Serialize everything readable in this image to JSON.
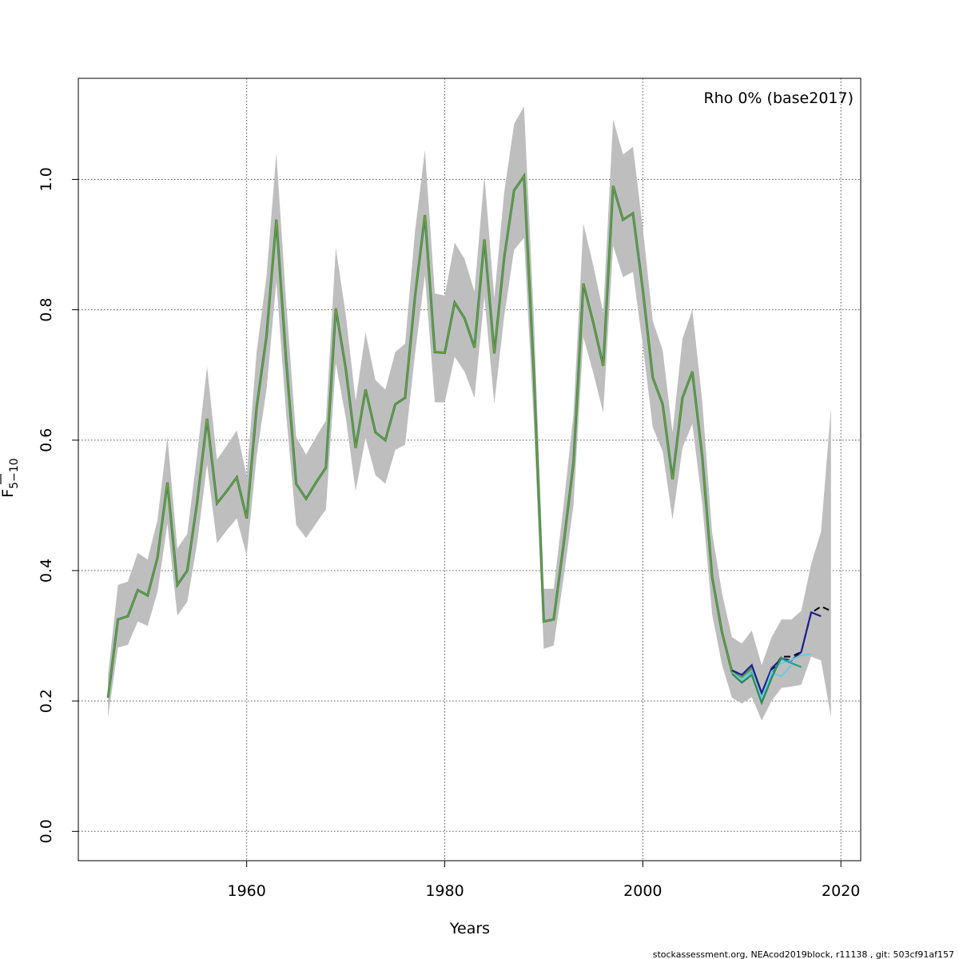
{
  "chart_data": {
    "type": "line",
    "xlabel": "Years",
    "ylabel_main": "F",
    "ylabel_sub": "5−10",
    "xlim": [
      1943,
      2022
    ],
    "ylim": [
      -0.045,
      1.155
    ],
    "xticks": [
      1960,
      1980,
      2000,
      2020
    ],
    "yticks": [
      0.0,
      0.2,
      0.4,
      0.6,
      0.8,
      1.0
    ],
    "ytick_labels": [
      "0.0",
      "0.2",
      "0.4",
      "0.6",
      "0.8",
      "1.0"
    ],
    "grid": true,
    "annotation": "Rho 0% (base2017)",
    "footer": "stockassessment.org, NEAcod2019block, r11138 , git: 503cf91af157",
    "colors": {
      "band": "#bebebe",
      "base_line": "#2e8b57",
      "base_overlay": "#b8a020",
      "peel_black": "#000000",
      "peel_navy": "#1f1f8f",
      "peel_teal": "#20a090",
      "peel_lightblue": "#70c8e0",
      "grid": "#555555"
    },
    "x": [
      1946,
      1947,
      1948,
      1949,
      1950,
      1951,
      1952,
      1953,
      1954,
      1955,
      1956,
      1957,
      1958,
      1959,
      1960,
      1961,
      1962,
      1963,
      1964,
      1965,
      1966,
      1967,
      1968,
      1969,
      1970,
      1971,
      1972,
      1973,
      1974,
      1975,
      1976,
      1977,
      1978,
      1979,
      1980,
      1981,
      1982,
      1983,
      1984,
      1985,
      1986,
      1987,
      1988,
      1989,
      1990,
      1991,
      1992,
      1993,
      1994,
      1995,
      1996,
      1997,
      1998,
      1999,
      2000,
      2001,
      2002,
      2003,
      2004,
      2005,
      2006,
      2007,
      2008,
      2009,
      2010,
      2011,
      2012,
      2013,
      2014,
      2015,
      2016,
      2017,
      2018,
      2019
    ],
    "estimate": [
      0.205,
      0.325,
      0.33,
      0.37,
      0.362,
      0.42,
      0.535,
      0.378,
      0.4,
      0.505,
      0.633,
      0.503,
      0.522,
      0.543,
      0.48,
      0.65,
      0.76,
      0.938,
      0.72,
      0.533,
      0.51,
      0.535,
      0.558,
      0.802,
      0.71,
      0.588,
      0.678,
      0.612,
      0.6,
      0.655,
      0.665,
      0.82,
      0.945,
      0.735,
      0.734,
      0.811,
      0.787,
      0.742,
      0.908,
      0.733,
      0.88,
      0.983,
      1.005,
      0.7,
      0.322,
      0.325,
      0.44,
      0.565,
      0.84,
      0.78,
      0.714,
      0.99,
      0.938,
      0.948,
      0.83,
      0.696,
      0.655,
      0.54,
      0.665,
      0.705,
      0.575,
      0.39,
      0.305,
      0.245,
      0.235,
      0.25,
      0.208,
      0.245,
      0.268,
      0.268,
      0.275,
      0.335,
      0.345,
      0.338
    ],
    "upper": [
      0.24,
      0.378,
      0.383,
      0.427,
      0.417,
      0.478,
      0.605,
      0.434,
      0.456,
      0.578,
      0.713,
      0.57,
      0.592,
      0.615,
      0.545,
      0.735,
      0.852,
      1.04,
      0.81,
      0.605,
      0.578,
      0.605,
      0.63,
      0.895,
      0.793,
      0.66,
      0.765,
      0.692,
      0.678,
      0.735,
      0.748,
      0.92,
      1.045,
      0.825,
      0.822,
      0.903,
      0.878,
      0.828,
      1.006,
      0.818,
      0.98,
      1.085,
      1.112,
      0.785,
      0.372,
      0.372,
      0.5,
      0.64,
      0.932,
      0.868,
      0.796,
      1.092,
      1.038,
      1.05,
      0.925,
      0.783,
      0.738,
      0.612,
      0.755,
      0.8,
      0.66,
      0.458,
      0.365,
      0.298,
      0.288,
      0.308,
      0.255,
      0.298,
      0.325,
      0.325,
      0.338,
      0.41,
      0.46,
      0.65
    ],
    "lower": [
      0.175,
      0.282,
      0.286,
      0.322,
      0.315,
      0.367,
      0.472,
      0.331,
      0.352,
      0.442,
      0.563,
      0.442,
      0.462,
      0.48,
      0.423,
      0.575,
      0.678,
      0.843,
      0.638,
      0.47,
      0.45,
      0.472,
      0.494,
      0.718,
      0.635,
      0.522,
      0.603,
      0.546,
      0.533,
      0.585,
      0.593,
      0.732,
      0.853,
      0.658,
      0.658,
      0.728,
      0.705,
      0.665,
      0.82,
      0.656,
      0.79,
      0.892,
      0.91,
      0.625,
      0.28,
      0.285,
      0.388,
      0.5,
      0.758,
      0.703,
      0.642,
      0.898,
      0.85,
      0.858,
      0.745,
      0.62,
      0.583,
      0.478,
      0.588,
      0.625,
      0.503,
      0.333,
      0.255,
      0.205,
      0.196,
      0.206,
      0.17,
      0.2,
      0.22,
      0.222,
      0.225,
      0.268,
      0.262,
      0.175
    ],
    "series": [
      {
        "x": [
          2009,
          2010,
          2011,
          2012,
          2013,
          2014,
          2015,
          2016,
          2017,
          2018
        ],
        "values": [
          0.247,
          0.24,
          0.255,
          0.212,
          0.25,
          0.265,
          0.262,
          0.275,
          0.336,
          0.33
        ],
        "color": "navy"
      },
      {
        "x": [
          2009,
          2010,
          2011,
          2012,
          2013,
          2014,
          2015,
          2016,
          2017
        ],
        "values": [
          0.243,
          0.233,
          0.246,
          0.202,
          0.245,
          0.258,
          0.263,
          0.27,
          0.272
        ],
        "color": "lightblue"
      },
      {
        "x": [
          2009,
          2010,
          2011,
          2012,
          2013,
          2014,
          2015,
          2016
        ],
        "values": [
          0.242,
          0.23,
          0.243,
          0.2,
          0.24,
          0.265,
          0.258,
          0.252
        ],
        "color": "teal"
      },
      {
        "x": [
          2009,
          2010,
          2011,
          2012,
          2013,
          2014,
          2015
        ],
        "values": [
          0.243,
          0.232,
          0.242,
          0.205,
          0.243,
          0.238,
          0.255
        ],
        "color": "lightblue"
      },
      {
        "x": [
          2009,
          2010,
          2011,
          2012,
          2013,
          2014
        ],
        "values": [
          0.242,
          0.228,
          0.24,
          0.197,
          0.235,
          0.268
        ],
        "color": "base"
      }
    ]
  }
}
